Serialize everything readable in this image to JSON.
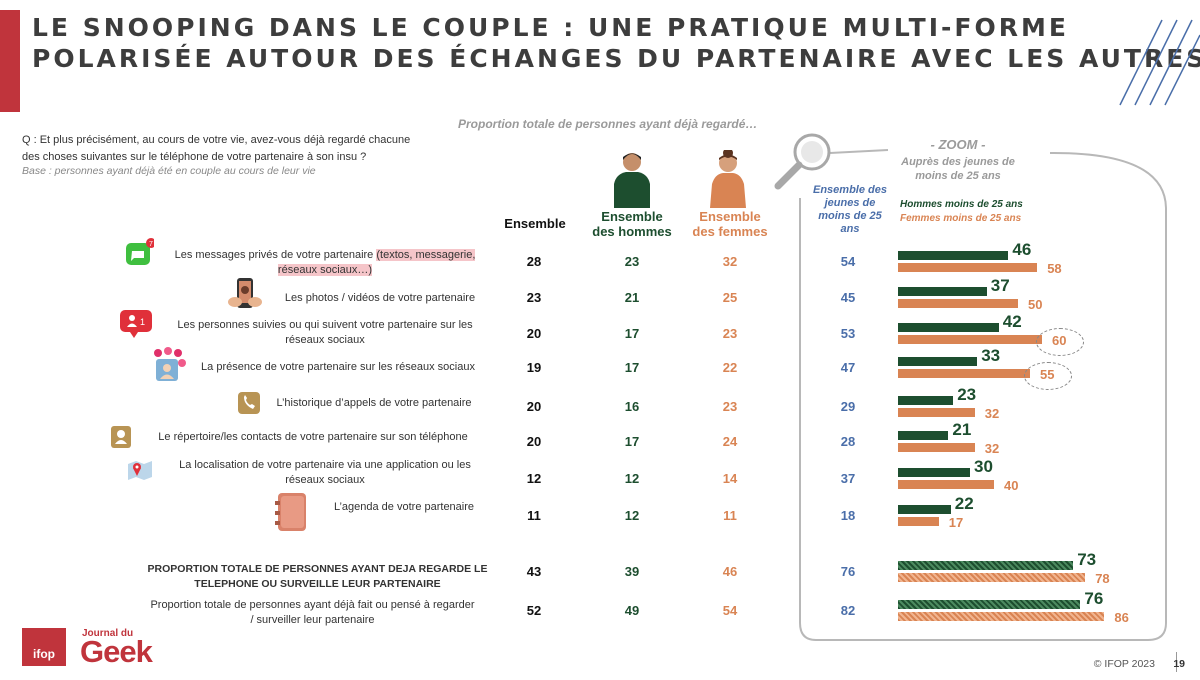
{
  "title_line1": "LE SNOOPING DANS LE COUPLE : UNE PRATIQUE MULTI-FORME",
  "title_line2": "POLARISÉE AUTOUR DES ÉCHANGES DU PARTENAIRE AVEC LES AUTRES",
  "question_line1": "Q : Et plus précisément, au cours de votre vie, avez-vous déjà regardé chacune",
  "question_line2": "des choses suivantes sur le téléphone de votre partenaire à son insu ?",
  "base": "Base : personnes ayant déjà été en couple au cours de leur vie",
  "subtitle": "Proportion totale de personnes ayant déjà regardé…",
  "columns": {
    "ensemble": "Ensemble",
    "hommes": "Ensemble des hommes",
    "femmes": "Ensemble des femmes",
    "jeunes": "Ensemble des jeunes de moins de 25 ans"
  },
  "zoom": {
    "title": "- ZOOM -",
    "subtitle": "Auprès des jeunes de moins de 25 ans",
    "legend_hommes": "Hommes moins de 25 ans",
    "legend_femmes": "Femmes moins de 25 ans"
  },
  "colors": {
    "hommes": "#1d4e2f",
    "femmes": "#d98453",
    "jeunes": "#4a6ea9",
    "accent": "#c0343c"
  },
  "chart_data": {
    "type": "table",
    "columns": [
      "Ensemble",
      "Ensemble des hommes",
      "Ensemble des femmes",
      "Ensemble des jeunes de moins de 25 ans"
    ],
    "rows": [
      {
        "label_a": "Les messages privés de votre partenaire ",
        "label_b": "(textos, messagerie,",
        "label_c": "réseaux sociaux…)",
        "icon": "messages-icon",
        "ensemble": 28,
        "hommes": 23,
        "femmes": 32,
        "jeunes": 54,
        "hommes_25": 46,
        "femmes_25": 58
      },
      {
        "label_a": "Les photos / vidéos de votre partenaire",
        "icon": "photos-icon",
        "ensemble": 23,
        "hommes": 21,
        "femmes": 25,
        "jeunes": 45,
        "hommes_25": 37,
        "femmes_25": 50
      },
      {
        "label_a": "Les personnes suivies ou qui suivent votre partenaire sur les",
        "label_c": "réseaux sociaux",
        "icon": "followers-icon",
        "ensemble": 20,
        "hommes": 17,
        "femmes": 23,
        "jeunes": 53,
        "hommes_25": 42,
        "femmes_25": 60
      },
      {
        "label_a": "La présence de votre partenaire sur les réseaux sociaux",
        "icon": "social-presence-icon",
        "ensemble": 19,
        "hommes": 17,
        "femmes": 22,
        "jeunes": 47,
        "hommes_25": 33,
        "femmes_25": 55
      },
      {
        "label_a": "L’historique d’appels de votre partenaire",
        "icon": "call-history-icon",
        "ensemble": 20,
        "hommes": 16,
        "femmes": 23,
        "jeunes": 29,
        "hommes_25": 23,
        "femmes_25": 32
      },
      {
        "label_a": "Le répertoire/les contacts de votre partenaire sur son téléphone",
        "icon": "contacts-icon",
        "ensemble": 20,
        "hommes": 17,
        "femmes": 24,
        "jeunes": 28,
        "hommes_25": 21,
        "femmes_25": 32
      },
      {
        "label_a": "La localisation de votre partenaire via une application ou les",
        "label_c": "réseaux sociaux",
        "icon": "location-icon",
        "ensemble": 12,
        "hommes": 12,
        "femmes": 14,
        "jeunes": 37,
        "hommes_25": 30,
        "femmes_25": 40
      },
      {
        "label_a": "L’agenda de votre partenaire",
        "icon": "agenda-icon",
        "ensemble": 11,
        "hommes": 12,
        "femmes": 11,
        "jeunes": 18,
        "hommes_25": 22,
        "femmes_25": 17
      }
    ],
    "totals": [
      {
        "label_a": "PROPORTION TOTALE DE PERSONNES AYANT DEJA REGARDE LE",
        "label_c": "TELEPHONE OU SURVEILLE LEUR PARTENAIRE",
        "ensemble": 43,
        "hommes": 39,
        "femmes": 46,
        "jeunes": 76,
        "hommes_25": 73,
        "femmes_25": 78
      },
      {
        "label_a": "Proportion totale de personnes ayant déjà fait ou pensé à regarder",
        "label_c": "/ surveiller leur partenaire",
        "ensemble": 52,
        "hommes": 49,
        "femmes": 54,
        "jeunes": 82,
        "hommes_25": 76,
        "femmes_25": 86
      }
    ],
    "bar_series": [
      "Hommes moins de 25 ans",
      "Femmes moins de 25 ans"
    ],
    "circled_values": [
      60,
      55
    ]
  },
  "footer": "© IFOP 2023",
  "page_number": "19",
  "logos": {
    "ifop": "ifop",
    "jdg_small": "Journal du",
    "jdg_big": "Geek"
  }
}
